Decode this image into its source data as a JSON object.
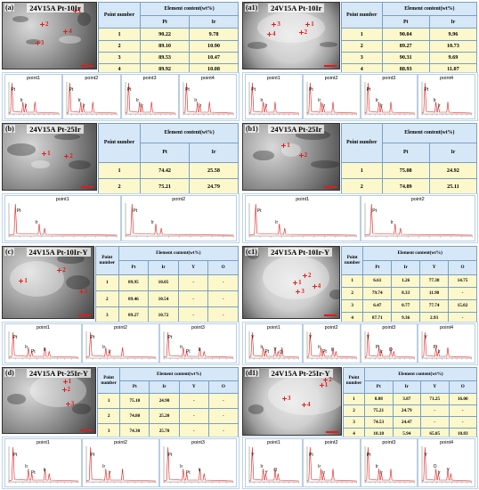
{
  "panels": [
    {
      "letter": "(a)",
      "title": "24V15A Pt-10Ir",
      "markers": [
        "1",
        "2",
        "3",
        "4"
      ],
      "table_head": {
        "point": "Point number",
        "element": "Element content(wt%)",
        "cols": [
          "Pt",
          "Ir"
        ]
      },
      "rows": [
        [
          "1",
          "90.22",
          "9.78"
        ],
        [
          "2",
          "89.10",
          "10.90"
        ],
        [
          "3",
          "89.53",
          "10.47"
        ],
        [
          "4",
          "89.92",
          "10.08"
        ]
      ],
      "spectra": [
        {
          "title": "point1",
          "peaks": [
            "Pt",
            "Ir",
            "Ir"
          ]
        },
        {
          "title": "point2",
          "peaks": [
            "Pt",
            "Ir",
            "Ir"
          ]
        },
        {
          "title": "point3",
          "peaks": [
            "Pt",
            "Ir",
            "Ir"
          ]
        },
        {
          "title": "point4",
          "peaks": [
            "Pt",
            "Ir",
            "Ir"
          ]
        }
      ]
    },
    {
      "letter": "(a1)",
      "title": "24V15A Pt-10Ir",
      "markers": [
        "1",
        "2",
        "3",
        "4"
      ],
      "table_head": {
        "point": "Point number",
        "element": "Element content(wt%)",
        "cols": [
          "Pt",
          "Ir"
        ]
      },
      "rows": [
        [
          "1",
          "90.04",
          "9.96"
        ],
        [
          "2",
          "89.27",
          "10.73"
        ],
        [
          "3",
          "90.31",
          "9.69"
        ],
        [
          "4",
          "88.93",
          "11.07"
        ]
      ],
      "spectra": [
        {
          "title": "point1",
          "peaks": [
            "Pt",
            "Ir",
            "Ir"
          ]
        },
        {
          "title": "point2",
          "peaks": [
            "Pt",
            "Ir",
            "Ir"
          ]
        },
        {
          "title": "point3",
          "peaks": [
            "Pt",
            "Ir",
            "Ir"
          ]
        },
        {
          "title": "point4",
          "peaks": [
            "Pt",
            "Ir",
            "Ir"
          ]
        }
      ]
    },
    {
      "letter": "(b)",
      "title": "24V15A Pt-25Ir",
      "markers": [
        "1",
        "2"
      ],
      "table_head": {
        "point": "Point number",
        "element": "Element content(wt%)",
        "cols": [
          "Pt",
          "Ir"
        ]
      },
      "rows": [
        [
          "1",
          "74.42",
          "25.58"
        ],
        [
          "2",
          "75.21",
          "24.79"
        ]
      ],
      "spectra": [
        {
          "title": "point1",
          "peaks": [
            "Pt",
            "Ir"
          ]
        },
        {
          "title": "point2",
          "peaks": [
            "Pt",
            "Ir"
          ]
        }
      ]
    },
    {
      "letter": "(b1)",
      "title": "24V15A Pt-25Ir",
      "markers": [
        "1",
        "2"
      ],
      "table_head": {
        "point": "Point number",
        "element": "Element content(wt%)",
        "cols": [
          "Pt",
          "Ir"
        ]
      },
      "rows": [
        [
          "1",
          "75.08",
          "24.92"
        ],
        [
          "2",
          "74.89",
          "25.11"
        ]
      ],
      "spectra": [
        {
          "title": "point1",
          "peaks": [
            "Pt",
            "Ir"
          ]
        },
        {
          "title": "point2",
          "peaks": [
            "Pt",
            "Ir"
          ]
        }
      ]
    },
    {
      "letter": "(c)",
      "title": "24V15A Pt-10Ir-Y",
      "markers": [
        "1",
        "2",
        "3"
      ],
      "table_head": {
        "point": "Point number",
        "element": "Element content(wt%)",
        "cols": [
          "Pt",
          "Ir",
          "Y",
          "O"
        ]
      },
      "rows": [
        [
          "1",
          "89.95",
          "10.05",
          "-",
          "-"
        ],
        [
          "2",
          "89.46",
          "10.54",
          "-",
          "-"
        ],
        [
          "3",
          "89.27",
          "10.72",
          "-",
          "-"
        ]
      ],
      "spectra": [
        {
          "title": "point1",
          "peaks": [
            "Pt",
            "Ir",
            "Pt",
            "Ir"
          ]
        },
        {
          "title": "point2",
          "peaks": [
            "Pt",
            "Ir",
            "Ir"
          ]
        },
        {
          "title": "point3",
          "peaks": [
            "Pt",
            "Ir",
            "Pt",
            "Ir"
          ]
        }
      ]
    },
    {
      "letter": "(c1)",
      "title": "24V15A Pt-10Ir-Y",
      "markers": [
        "1",
        "2",
        "3",
        "4"
      ],
      "table_head": {
        "point": "Point number",
        "element": "Element content(wt%)",
        "cols": [
          "Pt",
          "Ir",
          "Y",
          "O"
        ]
      },
      "rows": [
        [
          "1",
          "6.61",
          "1.26",
          "77.38",
          "14.75"
        ],
        [
          "2",
          "79.74",
          "8.33",
          "11.90",
          "-"
        ],
        [
          "3",
          "6.47",
          "0.77",
          "77.74",
          "15.02"
        ],
        [
          "4",
          "87.71",
          "9.36",
          "2.93",
          "-"
        ]
      ],
      "spectra": [
        {
          "title": "point1",
          "peaks": [
            "Y",
            "Ir",
            "Pt",
            "Y",
            "O"
          ]
        },
        {
          "title": "point2",
          "peaks": [
            "Y",
            "Ir",
            "Pt",
            "Ir"
          ]
        },
        {
          "title": "point3",
          "peaks": [
            "Y",
            "Pt",
            "Ir",
            "O"
          ]
        },
        {
          "title": "point4",
          "peaks": [
            "Y",
            "Pt",
            "Ir"
          ]
        }
      ]
    },
    {
      "letter": "(d)",
      "title": "24V15A Pt-25Ir-Y",
      "markers": [
        "1",
        "2",
        "3"
      ],
      "table_head": {
        "point": "Point number",
        "element": "Element content(wt%)",
        "cols": [
          "Pt",
          "Ir",
          "Y",
          "O"
        ]
      },
      "rows": [
        [
          "1",
          "75.10",
          "24.90",
          "-",
          "-"
        ],
        [
          "2",
          "74.80",
          "25.20",
          "-",
          "-"
        ],
        [
          "3",
          "74.30",
          "25.70",
          "-",
          "-"
        ]
      ],
      "spectra": [
        {
          "title": "point1",
          "peaks": [
            "Pt",
            "Ir",
            "Pt",
            "Ir"
          ]
        },
        {
          "title": "point2",
          "peaks": [
            "Pt",
            "Ir",
            "Ir"
          ]
        },
        {
          "title": "point3",
          "peaks": [
            "Pt",
            "Ir",
            "Pt",
            "Ir"
          ]
        }
      ]
    },
    {
      "letter": "(d1)",
      "title": "24V15A Pt-25Ir-Y",
      "markers": [
        "1",
        "2",
        "3",
        "4"
      ],
      "table_head": {
        "point": "Point number",
        "element": "Element content(wt%)",
        "cols": [
          "Pt",
          "Ir",
          "Y",
          "O"
        ]
      },
      "rows": [
        [
          "1",
          "8.88",
          "3.87",
          "71.25",
          "16.00"
        ],
        [
          "2",
          "75.21",
          "24.79",
          "-",
          "-"
        ],
        [
          "3",
          "74.53",
          "24.47",
          "-",
          "-"
        ],
        [
          "4",
          "18.18",
          "5.94",
          "65.05",
          "10.83"
        ]
      ],
      "spectra": [
        {
          "title": "point1",
          "peaks": [
            "Y",
            "Ir",
            "Y",
            "O"
          ]
        },
        {
          "title": "point2",
          "peaks": [
            "Pt",
            "Ir",
            "Ir"
          ]
        },
        {
          "title": "point3",
          "peaks": [
            "Pt",
            "Ir",
            "Ir"
          ]
        },
        {
          "title": "point4",
          "peaks": [
            "Y",
            "O",
            "Ir",
            "Y"
          ]
        }
      ]
    }
  ],
  "colors": {
    "table_header": "#d6e7f7",
    "table_cell": "#fcf8cc",
    "spectrum_line": "#e31b1b",
    "marker": "#e31b1b"
  }
}
